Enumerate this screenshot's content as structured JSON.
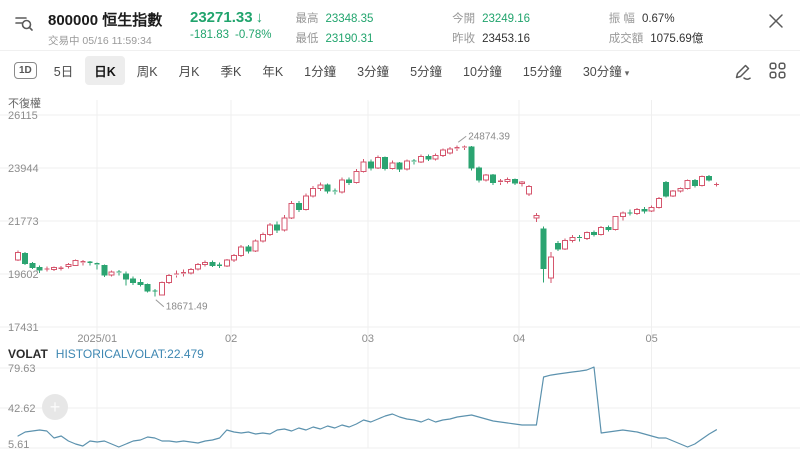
{
  "header": {
    "code": "800000",
    "name": "恒生指數",
    "title": "800000 恒生指數",
    "status": "交易中 05/16 11:59:34",
    "price": "23271.33",
    "arrow": "↓",
    "change": "-181.83",
    "change_pct": "-0.78%",
    "stats": [
      {
        "label": "最高",
        "value": "23348.35",
        "color": "green"
      },
      {
        "label": "今開",
        "value": "23249.16",
        "color": "green"
      },
      {
        "label": "振 幅",
        "value": "0.67%",
        "color": "dark"
      },
      {
        "label": "最低",
        "value": "23190.31",
        "color": "green"
      },
      {
        "label": "昨收",
        "value": "23453.16",
        "color": "dark"
      },
      {
        "label": "成交額",
        "value": "1075.69億",
        "color": "dark"
      }
    ]
  },
  "toolbar": {
    "items": [
      {
        "label": "1D"
      },
      {
        "label": "5日"
      },
      {
        "label": "日K",
        "active": true
      },
      {
        "label": "周K"
      },
      {
        "label": "月K"
      },
      {
        "label": "季K"
      },
      {
        "label": "年K"
      },
      {
        "label": "1分鐘"
      },
      {
        "label": "3分鐘"
      },
      {
        "label": "5分鐘"
      },
      {
        "label": "10分鐘"
      },
      {
        "label": "15分鐘"
      },
      {
        "label": "30分鐘"
      }
    ],
    "caret": "▾",
    "icons": [
      "draw-pencil",
      "indicator-grid"
    ]
  },
  "icons": {
    "add_indicator": "+"
  },
  "colors": {
    "up_red": "#d5566d",
    "down_green": "#2ba471",
    "price_green": "#21a46d",
    "volat_line": "#5c92ae",
    "volat_label_blue": "#3e87b2",
    "grid": "#efefef",
    "axis_text": "#8d8d8d"
  },
  "chart_data": {
    "type": "candlestick",
    "adjust_label": "不復權",
    "price_axis": {
      "max": 26115,
      "min": 17431,
      "ticks": [
        26115,
        23944,
        21773,
        19602,
        17431
      ]
    },
    "x_axis": {
      "ticks": [
        {
          "label": "2025/01",
          "index": 11
        },
        {
          "label": "02",
          "index": 29.6
        },
        {
          "label": "03",
          "index": 48.6
        },
        {
          "label": "04",
          "index": 69.6
        },
        {
          "label": "05",
          "index": 88
        }
      ]
    },
    "annotations": {
      "low": {
        "index": 19,
        "value": "18671.49"
      },
      "high": {
        "index": 61,
        "value": "24874.39"
      }
    },
    "candles": [
      [
        20180,
        20560,
        20140,
        20490
      ],
      [
        20450,
        20500,
        19980,
        20040
      ],
      [
        20040,
        20100,
        19800,
        19860
      ],
      [
        19860,
        19940,
        19650,
        19760
      ],
      [
        19800,
        19900,
        19700,
        19810
      ],
      [
        19780,
        19900,
        19720,
        19860
      ],
      [
        19820,
        19920,
        19740,
        19840
      ],
      [
        19900,
        20050,
        19830,
        19990
      ],
      [
        19960,
        20200,
        19920,
        20150
      ],
      [
        20050,
        20180,
        19950,
        20100
      ],
      [
        20080,
        20140,
        19960,
        20060
      ],
      [
        20020,
        20080,
        19780,
        19980
      ],
      [
        19950,
        20000,
        19480,
        19560
      ],
      [
        19560,
        19750,
        19490,
        19680
      ],
      [
        19680,
        19760,
        19550,
        19640
      ],
      [
        19600,
        19700,
        19140,
        19400
      ],
      [
        19400,
        19500,
        19150,
        19250
      ],
      [
        19250,
        19400,
        19090,
        19180
      ],
      [
        19180,
        19220,
        18840,
        18900
      ],
      [
        18900,
        18980,
        18671.49,
        18880
      ],
      [
        18750,
        19300,
        18720,
        19250
      ],
      [
        19250,
        19600,
        19200,
        19550
      ],
      [
        19550,
        19750,
        19450,
        19600
      ],
      [
        19600,
        19780,
        19500,
        19650
      ],
      [
        19650,
        19850,
        19590,
        19780
      ],
      [
        19800,
        20050,
        19750,
        20000
      ],
      [
        20000,
        20150,
        19900,
        20080
      ],
      [
        20080,
        20150,
        19890,
        19960
      ],
      [
        19960,
        20080,
        19850,
        19920
      ],
      [
        19920,
        20220,
        19880,
        20180
      ],
      [
        20180,
        20420,
        20100,
        20360
      ],
      [
        20360,
        20800,
        20300,
        20710
      ],
      [
        20710,
        20800,
        20440,
        20550
      ],
      [
        20550,
        21010,
        20500,
        20950
      ],
      [
        20950,
        21310,
        20900,
        21230
      ],
      [
        21230,
        21700,
        21150,
        21600
      ],
      [
        21600,
        21750,
        21290,
        21400
      ],
      [
        21400,
        22010,
        21350,
        21900
      ],
      [
        21900,
        22600,
        21850,
        22500
      ],
      [
        22500,
        22600,
        22140,
        22250
      ],
      [
        22250,
        22900,
        22200,
        22800
      ],
      [
        22800,
        23200,
        22740,
        23100
      ],
      [
        23100,
        23350,
        23000,
        23250
      ],
      [
        23250,
        23300,
        22890,
        23000
      ],
      [
        23000,
        23100,
        22850,
        22960
      ],
      [
        22960,
        23550,
        22900,
        23450
      ],
      [
        23450,
        23550,
        23240,
        23350
      ],
      [
        23350,
        23900,
        23300,
        23800
      ],
      [
        23800,
        24310,
        23750,
        24200
      ],
      [
        24200,
        24300,
        23840,
        23950
      ],
      [
        23950,
        24450,
        23900,
        24380
      ],
      [
        24380,
        24420,
        23850,
        23920
      ],
      [
        23920,
        24260,
        23880,
        24150
      ],
      [
        24150,
        24200,
        23790,
        23900
      ],
      [
        23900,
        24300,
        23850,
        24230
      ],
      [
        24230,
        24310,
        24090,
        24200
      ],
      [
        24200,
        24500,
        24150,
        24420
      ],
      [
        24420,
        24500,
        24240,
        24320
      ],
      [
        24320,
        24530,
        24260,
        24450
      ],
      [
        24450,
        24750,
        24400,
        24680
      ],
      [
        24550,
        24810,
        24500,
        24720
      ],
      [
        24720,
        24874.39,
        24640,
        24770
      ],
      [
        24770,
        24860,
        24690,
        24800
      ],
      [
        24800,
        24850,
        23840,
        23950
      ],
      [
        23950,
        24000,
        23340,
        23450
      ],
      [
        23450,
        23700,
        23400,
        23650
      ],
      [
        23650,
        23700,
        23240,
        23350
      ],
      [
        23350,
        23500,
        23240,
        23400
      ],
      [
        23400,
        23550,
        23300,
        23480
      ],
      [
        23480,
        23520,
        23240,
        23320
      ],
      [
        23300,
        23420,
        23190,
        23380
      ],
      [
        22880,
        23250,
        22800,
        23180
      ],
      [
        21900,
        22100,
        21740,
        22000
      ],
      [
        21450,
        21550,
        19260,
        19830
      ],
      [
        19440,
        20500,
        19230,
        20300
      ],
      [
        20850,
        20950,
        20550,
        20620
      ],
      [
        20620,
        21050,
        20580,
        20980
      ],
      [
        20980,
        21200,
        20900,
        21100
      ],
      [
        21100,
        21200,
        20940,
        21050
      ],
      [
        21050,
        21350,
        21000,
        21300
      ],
      [
        21300,
        21380,
        21140,
        21220
      ],
      [
        21220,
        21560,
        21180,
        21500
      ],
      [
        21500,
        21580,
        21340,
        21420
      ],
      [
        21420,
        21980,
        21380,
        21950
      ],
      [
        21950,
        22160,
        21800,
        22100
      ],
      [
        22100,
        22250,
        21990,
        22080
      ],
      [
        22080,
        22300,
        22020,
        22250
      ],
      [
        22250,
        22350,
        22090,
        22180
      ],
      [
        22180,
        22400,
        22140,
        22330
      ],
      [
        22330,
        22760,
        22280,
        22700
      ],
      [
        23350,
        23420,
        22740,
        22800
      ],
      [
        22800,
        23050,
        22760,
        23000
      ],
      [
        23000,
        23150,
        22950,
        23100
      ],
      [
        23100,
        23480,
        23060,
        23430
      ],
      [
        23430,
        23500,
        23140,
        23220
      ],
      [
        23220,
        23640,
        23180,
        23600
      ],
      [
        23600,
        23660,
        23400,
        23453.16
      ],
      [
        23249.16,
        23348.35,
        23190.31,
        23271.33
      ]
    ],
    "volat": {
      "label": "VOLAT",
      "series_label": "HISTORICALVOLAT:22.479",
      "current": 22.479,
      "axis": {
        "max": 79.63,
        "min": 5.61,
        "ticks": [
          79.63,
          42.62,
          5.61
        ]
      },
      "values": [
        16.7,
        20.4,
        21.3,
        22.3,
        21.3,
        14.9,
        16.7,
        12.1,
        9.3,
        7.5,
        12.1,
        11.2,
        12.1,
        9.3,
        6.5,
        9.3,
        12.1,
        13,
        15.8,
        14.9,
        12.1,
        12.1,
        11.2,
        12.1,
        11.2,
        10.2,
        12.1,
        13,
        14.9,
        22.3,
        20.4,
        19.5,
        20.4,
        18.6,
        19.5,
        18.6,
        22.3,
        23.2,
        21.3,
        24.1,
        22.3,
        25,
        23.2,
        26,
        24.1,
        26.9,
        25,
        27.8,
        31.5,
        29.7,
        32.4,
        35.2,
        37.1,
        34.3,
        32.4,
        31.5,
        29.7,
        32.4,
        29.7,
        31.5,
        32.4,
        34.3,
        35.2,
        36.1,
        34.3,
        32.4,
        30.6,
        29.7,
        28.7,
        27.8,
        26.9,
        26.9,
        26.9,
        71.3,
        73.1,
        74.1,
        75,
        75.9,
        76.8,
        77.8,
        80.5,
        19.5,
        20.4,
        21.3,
        22.3,
        21.3,
        20.4,
        18.6,
        16.7,
        14.9,
        14.9,
        12.1,
        9.3,
        6.5,
        9.3,
        13.9,
        18.6,
        22.479
      ]
    }
  }
}
